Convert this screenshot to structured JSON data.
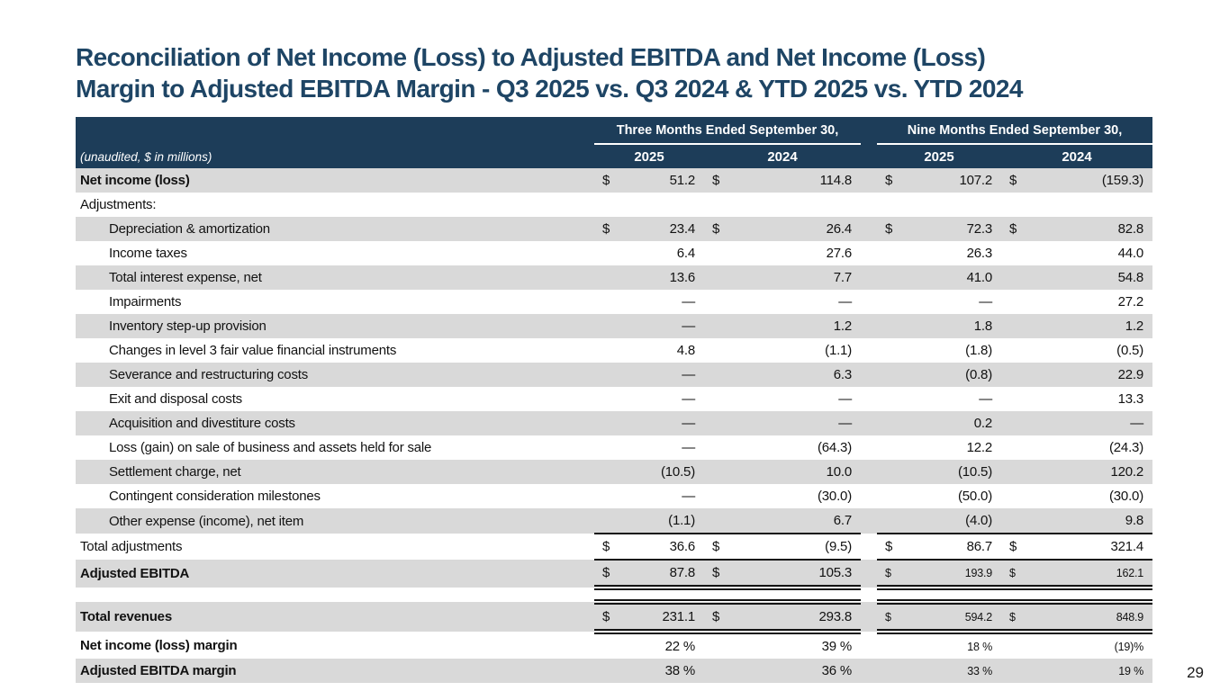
{
  "slide": {
    "title_line1": "Reconciliation of Net Income (Loss) to Adjusted EBITDA and Net Income (Loss)",
    "title_line2": "Margin to Adjusted EBITDA Margin - Q3 2025 vs. Q3 2024 & YTD 2025 vs. YTD 2024",
    "page_number": "29"
  },
  "colors": {
    "header_bg": "#1d3d59",
    "title_text": "#1e4565",
    "shaded_row_bg": "#d9d9d9",
    "rule_color": "#141414"
  },
  "table": {
    "note": "(unaudited, $ in millions)",
    "groups": [
      {
        "label": "Three Months Ended September 30,",
        "years": [
          "2025",
          "2024"
        ]
      },
      {
        "label": "Nine Months Ended September 30,",
        "years": [
          "2025",
          "2024"
        ]
      }
    ],
    "rows": [
      {
        "label": "Net income (loss)",
        "values": [
          "$",
          "51.2",
          "$",
          "114.8",
          "$",
          "107.2",
          "$",
          "(159.3)"
        ],
        "style": {
          "bg": "shaded",
          "bold": true,
          "indent": false,
          "rule": "",
          "small_ytd": false,
          "spacer_before": false
        }
      },
      {
        "label": "Adjustments:",
        "values": [
          "",
          "",
          "",
          "",
          "",
          "",
          "",
          ""
        ],
        "style": {
          "bg": "plain",
          "bold": false,
          "indent": false,
          "rule": "",
          "small_ytd": false,
          "spacer_before": false
        }
      },
      {
        "label": "Depreciation & amortization",
        "values": [
          "$",
          "23.4",
          "$",
          "26.4",
          "$",
          "72.3",
          "$",
          "82.8"
        ],
        "style": {
          "bg": "shaded",
          "bold": false,
          "indent": true,
          "rule": "",
          "small_ytd": false,
          "spacer_before": false
        }
      },
      {
        "label": "Income taxes",
        "values": [
          "",
          "6.4",
          "",
          "27.6",
          "",
          "26.3",
          "",
          "44.0"
        ],
        "style": {
          "bg": "plain",
          "bold": false,
          "indent": true,
          "rule": "",
          "small_ytd": false,
          "spacer_before": false
        }
      },
      {
        "label": "Total interest expense, net",
        "values": [
          "",
          "13.6",
          "",
          "7.7",
          "",
          "41.0",
          "",
          "54.8"
        ],
        "style": {
          "bg": "shaded",
          "bold": false,
          "indent": true,
          "rule": "",
          "small_ytd": false,
          "spacer_before": false
        }
      },
      {
        "label": "Impairments",
        "values": [
          "",
          "—",
          "",
          "—",
          "",
          "—",
          "",
          "27.2"
        ],
        "style": {
          "bg": "plain",
          "bold": false,
          "indent": true,
          "rule": "",
          "small_ytd": false,
          "spacer_before": false
        }
      },
      {
        "label": "Inventory step-up provision",
        "values": [
          "",
          "—",
          "",
          "1.2",
          "",
          "1.8",
          "",
          "1.2"
        ],
        "style": {
          "bg": "shaded",
          "bold": false,
          "indent": true,
          "rule": "",
          "small_ytd": false,
          "spacer_before": false
        }
      },
      {
        "label": "Changes in level 3 fair value financial instruments",
        "values": [
          "",
          "4.8",
          "",
          "(1.1)",
          "",
          "(1.8)",
          "",
          "(0.5)"
        ],
        "style": {
          "bg": "plain",
          "bold": false,
          "indent": true,
          "rule": "",
          "small_ytd": false,
          "spacer_before": false
        }
      },
      {
        "label": "Severance and restructuring costs",
        "values": [
          "",
          "—",
          "",
          "6.3",
          "",
          "(0.8)",
          "",
          "22.9"
        ],
        "style": {
          "bg": "shaded",
          "bold": false,
          "indent": true,
          "rule": "",
          "small_ytd": false,
          "spacer_before": false
        }
      },
      {
        "label": "Exit and disposal costs",
        "values": [
          "",
          "—",
          "",
          "—",
          "",
          "—",
          "",
          "13.3"
        ],
        "style": {
          "bg": "plain",
          "bold": false,
          "indent": true,
          "rule": "",
          "small_ytd": false,
          "spacer_before": false
        }
      },
      {
        "label": "Acquisition and divestiture costs",
        "values": [
          "",
          "—",
          "",
          "—",
          "",
          "0.2",
          "",
          "—"
        ],
        "style": {
          "bg": "shaded",
          "bold": false,
          "indent": true,
          "rule": "",
          "small_ytd": false,
          "spacer_before": false
        }
      },
      {
        "label": "Loss (gain) on sale of business and assets held for sale",
        "values": [
          "",
          "—",
          "",
          "(64.3)",
          "",
          "12.2",
          "",
          "(24.3)"
        ],
        "style": {
          "bg": "plain",
          "bold": false,
          "indent": true,
          "rule": "",
          "small_ytd": false,
          "spacer_before": false
        }
      },
      {
        "label": "Settlement charge, net",
        "values": [
          "",
          "(10.5)",
          "",
          "10.0",
          "",
          "(10.5)",
          "",
          "120.2"
        ],
        "style": {
          "bg": "shaded",
          "bold": false,
          "indent": true,
          "rule": "",
          "small_ytd": false,
          "spacer_before": false
        }
      },
      {
        "label": "Contingent consideration milestones",
        "values": [
          "",
          "—",
          "",
          "(30.0)",
          "",
          "(50.0)",
          "",
          "(30.0)"
        ],
        "style": {
          "bg": "plain",
          "bold": false,
          "indent": true,
          "rule": "",
          "small_ytd": false,
          "spacer_before": false
        }
      },
      {
        "label": "Other expense (income), net item",
        "values": [
          "",
          "(1.1)",
          "",
          "6.7",
          "",
          "(4.0)",
          "",
          "9.8"
        ],
        "style": {
          "bg": "shaded",
          "bold": false,
          "indent": true,
          "rule": "",
          "small_ytd": false,
          "spacer_before": false
        }
      },
      {
        "label": "Total adjustments",
        "values": [
          "$",
          "36.6",
          "$",
          "(9.5)",
          "$",
          "86.7",
          "$",
          "321.4"
        ],
        "style": {
          "bg": "plain",
          "bold": false,
          "indent": false,
          "rule": "rule-tb",
          "small_ytd": false,
          "spacer_before": false
        }
      },
      {
        "label": "Adjusted EBITDA",
        "values": [
          "$",
          "87.8",
          "$",
          "105.3",
          "$",
          "193.9",
          "$",
          "162.1"
        ],
        "style": {
          "bg": "shaded",
          "bold": true,
          "indent": false,
          "rule": "rule-dblb",
          "small_ytd": true,
          "spacer_before": false
        }
      },
      {
        "label": "Total revenues",
        "values": [
          "$",
          "231.1",
          "$",
          "293.8",
          "$",
          "594.2",
          "$",
          "848.9"
        ],
        "style": {
          "bg": "shaded",
          "bold": true,
          "indent": false,
          "rule": "rule-dblboth",
          "small_ytd": true,
          "spacer_before": true
        }
      },
      {
        "label": "Net income (loss) margin",
        "values": [
          "",
          "22 %",
          "",
          "39 %",
          "",
          "18 %",
          "",
          "(19)%"
        ],
        "style": {
          "bg": "plain",
          "bold": true,
          "indent": false,
          "rule": "",
          "small_ytd": true,
          "spacer_before": false
        }
      },
      {
        "label": "Adjusted EBITDA margin",
        "values": [
          "",
          "38 %",
          "",
          "36 %",
          "",
          "33 %",
          "",
          "19 %"
        ],
        "style": {
          "bg": "shaded",
          "bold": true,
          "indent": false,
          "rule": "",
          "small_ytd": true,
          "spacer_before": false
        }
      }
    ]
  }
}
